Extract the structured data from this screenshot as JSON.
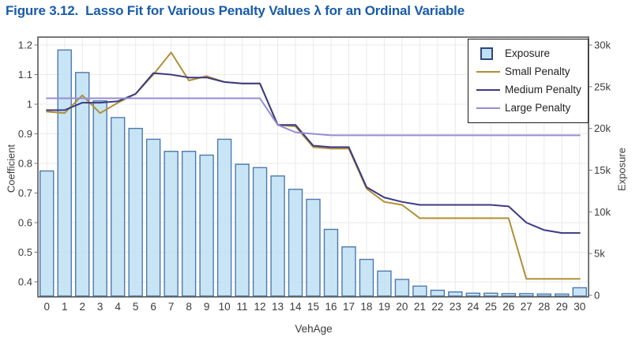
{
  "title": "Figure 3.12.  Lasso Fit for Various Penalty Values λ for an Ordinal Variable",
  "axes": {
    "x_label": "VehAge",
    "left_label": "Coefficient",
    "right_label": "Exposure",
    "left_ticks": [
      "1.2",
      "1.1",
      "1",
      "0.9",
      "0.8",
      "0.7",
      "0.6",
      "0.5",
      "0.4"
    ],
    "left_tick_values": [
      1.2,
      1.1,
      1.0,
      0.9,
      0.8,
      0.7,
      0.6,
      0.5,
      0.4
    ],
    "right_ticks": [
      "30k",
      "25k",
      "20k",
      "15k",
      "10k",
      "5k",
      "0"
    ],
    "right_tick_values": [
      30000,
      25000,
      20000,
      15000,
      10000,
      5000,
      0
    ],
    "left_range": [
      0.4,
      1.2
    ],
    "right_range": [
      0,
      30000
    ]
  },
  "colors": {
    "title": "#185CA9",
    "bar_fill": "#BEE1F4",
    "bar_edge": "#4D79AD",
    "small": "#B18F35",
    "medium": "#3A3A85",
    "large": "#958ED4",
    "grid": "#EAEAEA",
    "frame": "#565656",
    "tick_text": "#3B3B3B",
    "legend_square_edge": "#30467E"
  },
  "legend": {
    "items": [
      {
        "label": "Exposure",
        "swatch": "square"
      },
      {
        "label": "Small Penalty",
        "swatch": "line",
        "series": "small"
      },
      {
        "label": "Medium Penalty",
        "swatch": "line",
        "series": "medium"
      },
      {
        "label": "Large Penalty",
        "swatch": "line",
        "series": "large"
      }
    ]
  },
  "chart_data": {
    "type": "bar+line combo",
    "title": "Figure 3.12. Lasso Fit for Various Penalty Values λ for an Ordinal Variable",
    "xlabel": "VehAge",
    "grid": true,
    "legend_position": "top-right",
    "categories": [
      "0",
      "1",
      "2",
      "3",
      "4",
      "5",
      "6",
      "7",
      "8",
      "9",
      "10",
      "11",
      "12",
      "13",
      "14",
      "15",
      "16",
      "17",
      "18",
      "19",
      "20",
      "21",
      "22",
      "23",
      "24",
      "25",
      "26",
      "27",
      "28",
      "29",
      "30"
    ],
    "bar_series": {
      "name": "Exposure",
      "axis": "right",
      "ylim": [
        0,
        30000
      ],
      "values": [
        14900,
        29400,
        26700,
        23300,
        21300,
        20000,
        18700,
        17250,
        17250,
        16800,
        18700,
        15700,
        15300,
        14300,
        12700,
        11500,
        7900,
        5800,
        4300,
        2900,
        1900,
        1100,
        600,
        400,
        250,
        250,
        200,
        200,
        150,
        150,
        900
      ]
    },
    "line_series": [
      {
        "name": "Small Penalty",
        "key": "small",
        "axis": "left",
        "values": [
          0.975,
          0.97,
          1.03,
          0.97,
          1.005,
          1.035,
          1.1,
          1.175,
          1.08,
          1.095,
          1.075,
          1.07,
          1.07,
          0.93,
          0.925,
          0.855,
          0.85,
          0.85,
          0.715,
          0.67,
          0.66,
          0.615,
          0.615,
          0.615,
          0.615,
          0.615,
          0.615,
          0.41,
          0.41,
          0.41,
          0.41
        ]
      },
      {
        "name": "Medium Penalty",
        "key": "medium",
        "axis": "left",
        "values": [
          0.98,
          0.98,
          1.005,
          1.005,
          1.01,
          1.035,
          1.105,
          1.1,
          1.09,
          1.09,
          1.075,
          1.07,
          1.07,
          0.93,
          0.93,
          0.86,
          0.855,
          0.855,
          0.72,
          0.685,
          0.67,
          0.66,
          0.66,
          0.66,
          0.66,
          0.66,
          0.655,
          0.6,
          0.575,
          0.565,
          0.565
        ]
      },
      {
        "name": "Large Penalty",
        "key": "large",
        "axis": "left",
        "values": [
          1.02,
          1.02,
          1.02,
          1.02,
          1.02,
          1.02,
          1.02,
          1.02,
          1.02,
          1.02,
          1.02,
          1.02,
          1.02,
          0.93,
          0.905,
          0.9,
          0.895,
          0.895,
          0.895,
          0.895,
          0.895,
          0.895,
          0.895,
          0.895,
          0.895,
          0.895,
          0.895,
          0.895,
          0.895,
          0.895,
          0.895
        ]
      }
    ],
    "left_axis_label": "Coefficient",
    "right_axis_label": "Exposure",
    "left_ylim": [
      0.4,
      1.2
    ]
  }
}
